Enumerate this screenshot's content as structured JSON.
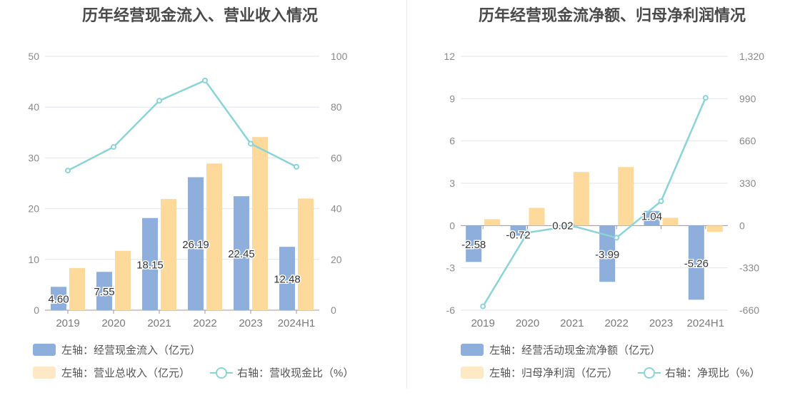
{
  "colors": {
    "bar_primary": "#8eaedc",
    "bar_secondary": "#fdd99b",
    "line": "#8ad4d8",
    "grid": "#e4e4ee"
  },
  "chart_data": [
    {
      "type": "bar",
      "title": "历年经营现金流入、营业收入情况",
      "categories": [
        "2019",
        "2020",
        "2021",
        "2022",
        "2023",
        "2024H1"
      ],
      "left_axis": {
        "ylim": [
          0,
          50
        ],
        "ticks": [
          "0",
          "10",
          "20",
          "30",
          "40",
          "50"
        ]
      },
      "right_axis": {
        "ylim": [
          0,
          100
        ],
        "ticks": [
          "0",
          "20",
          "40",
          "60",
          "80",
          "100"
        ]
      },
      "series": [
        {
          "name": "左轴：经营现金流入（亿元）",
          "kind": "bar",
          "axis": "left",
          "values": [
            4.6,
            7.55,
            18.15,
            26.19,
            22.45,
            12.48
          ],
          "labels": [
            "4.60",
            "7.55",
            "18.15",
            "26.19",
            "22.45",
            "12.48"
          ]
        },
        {
          "name": "左轴：营业总收入（亿元）",
          "kind": "bar",
          "axis": "left",
          "values": [
            8.3,
            11.7,
            21.9,
            28.9,
            34.1,
            22.0
          ]
        },
        {
          "name": "右轴：营收现金比（%）",
          "kind": "line",
          "axis": "right",
          "values": [
            55.0,
            64.3,
            82.5,
            90.5,
            65.6,
            56.5
          ]
        }
      ]
    },
    {
      "type": "bar",
      "title": "历年经营现金流净额、归母净利润情况",
      "categories": [
        "2019",
        "2020",
        "2021",
        "2022",
        "2023",
        "2024H1"
      ],
      "left_axis": {
        "ylim": [
          -6,
          12
        ],
        "ticks": [
          "-6",
          "-3",
          "0",
          "3",
          "6",
          "9",
          "12"
        ]
      },
      "right_axis": {
        "ylim": [
          -660,
          1320
        ],
        "ticks": [
          "-660",
          "-330",
          "0",
          "330",
          "660",
          "990",
          "1,320"
        ]
      },
      "series": [
        {
          "name": "左轴：经营活动现金流净额（亿元）",
          "kind": "bar",
          "axis": "left",
          "values": [
            -2.58,
            -0.72,
            0.02,
            -3.99,
            1.04,
            -5.26
          ],
          "labels": [
            "-2.58",
            "-0.72",
            "0.02",
            "-3.99",
            "1.04",
            "-5.26"
          ]
        },
        {
          "name": "左轴：归母净利润（亿元）",
          "kind": "bar",
          "axis": "left",
          "values": [
            0.45,
            1.25,
            3.8,
            4.15,
            0.55,
            -0.45
          ]
        },
        {
          "name": "右轴：净现比（%）",
          "kind": "line",
          "axis": "right",
          "values": [
            -630,
            -55,
            -2,
            -95,
            190,
            997
          ]
        }
      ]
    }
  ]
}
